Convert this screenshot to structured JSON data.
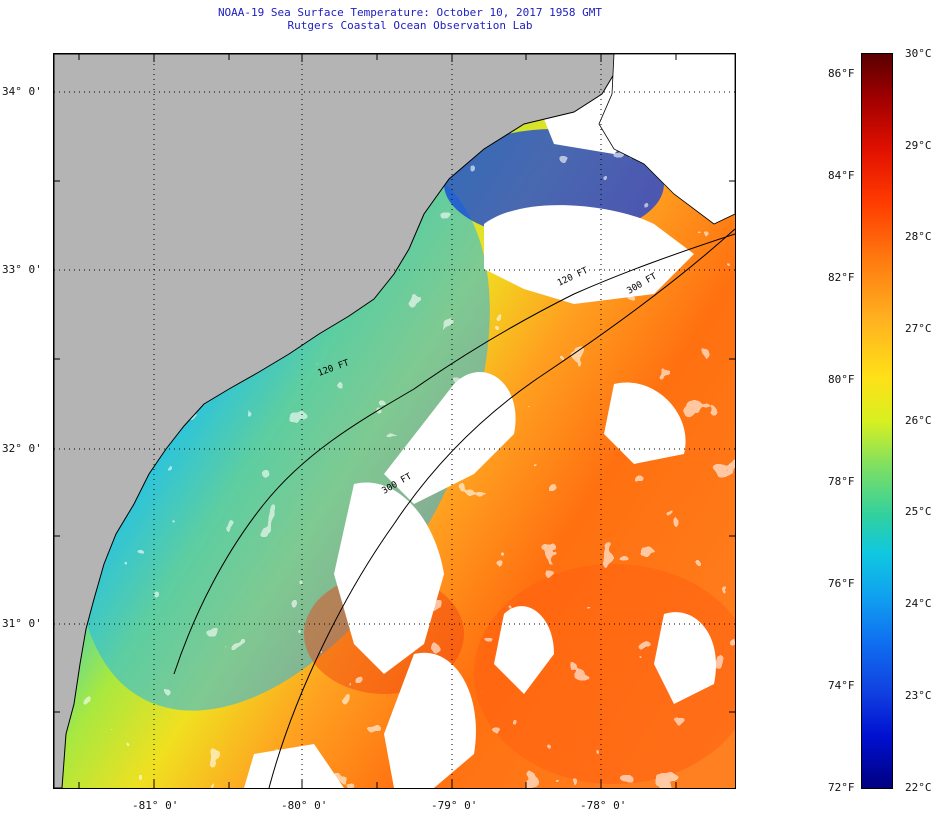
{
  "header": {
    "title_line1": "NOAA-19 Sea Surface Temperature:  October 10, 2017 1958 GMT",
    "title_line2": "Rutgers Coastal Ocean Observation Lab"
  },
  "map": {
    "latitude_labels": [
      "34° 0'",
      "33° 0'",
      "32° 0'",
      "31° 0'"
    ],
    "longitude_labels": [
      "-81° 0'",
      "-80° 0'",
      "-79° 0'",
      "-78° 0'"
    ],
    "isobath_labels": [
      "120 FT",
      "300 FT",
      "120 FT",
      "300 FT"
    ],
    "colors": {
      "land": "#b4b4b4",
      "no_data": "#ffffff",
      "coastline": "#000000"
    }
  },
  "colorbar": {
    "fahrenheit_labels": [
      "86°F",
      "84°F",
      "82°F",
      "80°F",
      "78°F",
      "76°F",
      "74°F",
      "72°F"
    ],
    "celsius_labels": [
      "30°C",
      "29°C",
      "28°C",
      "27°C",
      "26°C",
      "25°C",
      "24°C",
      "23°C",
      "22°C"
    ]
  }
}
